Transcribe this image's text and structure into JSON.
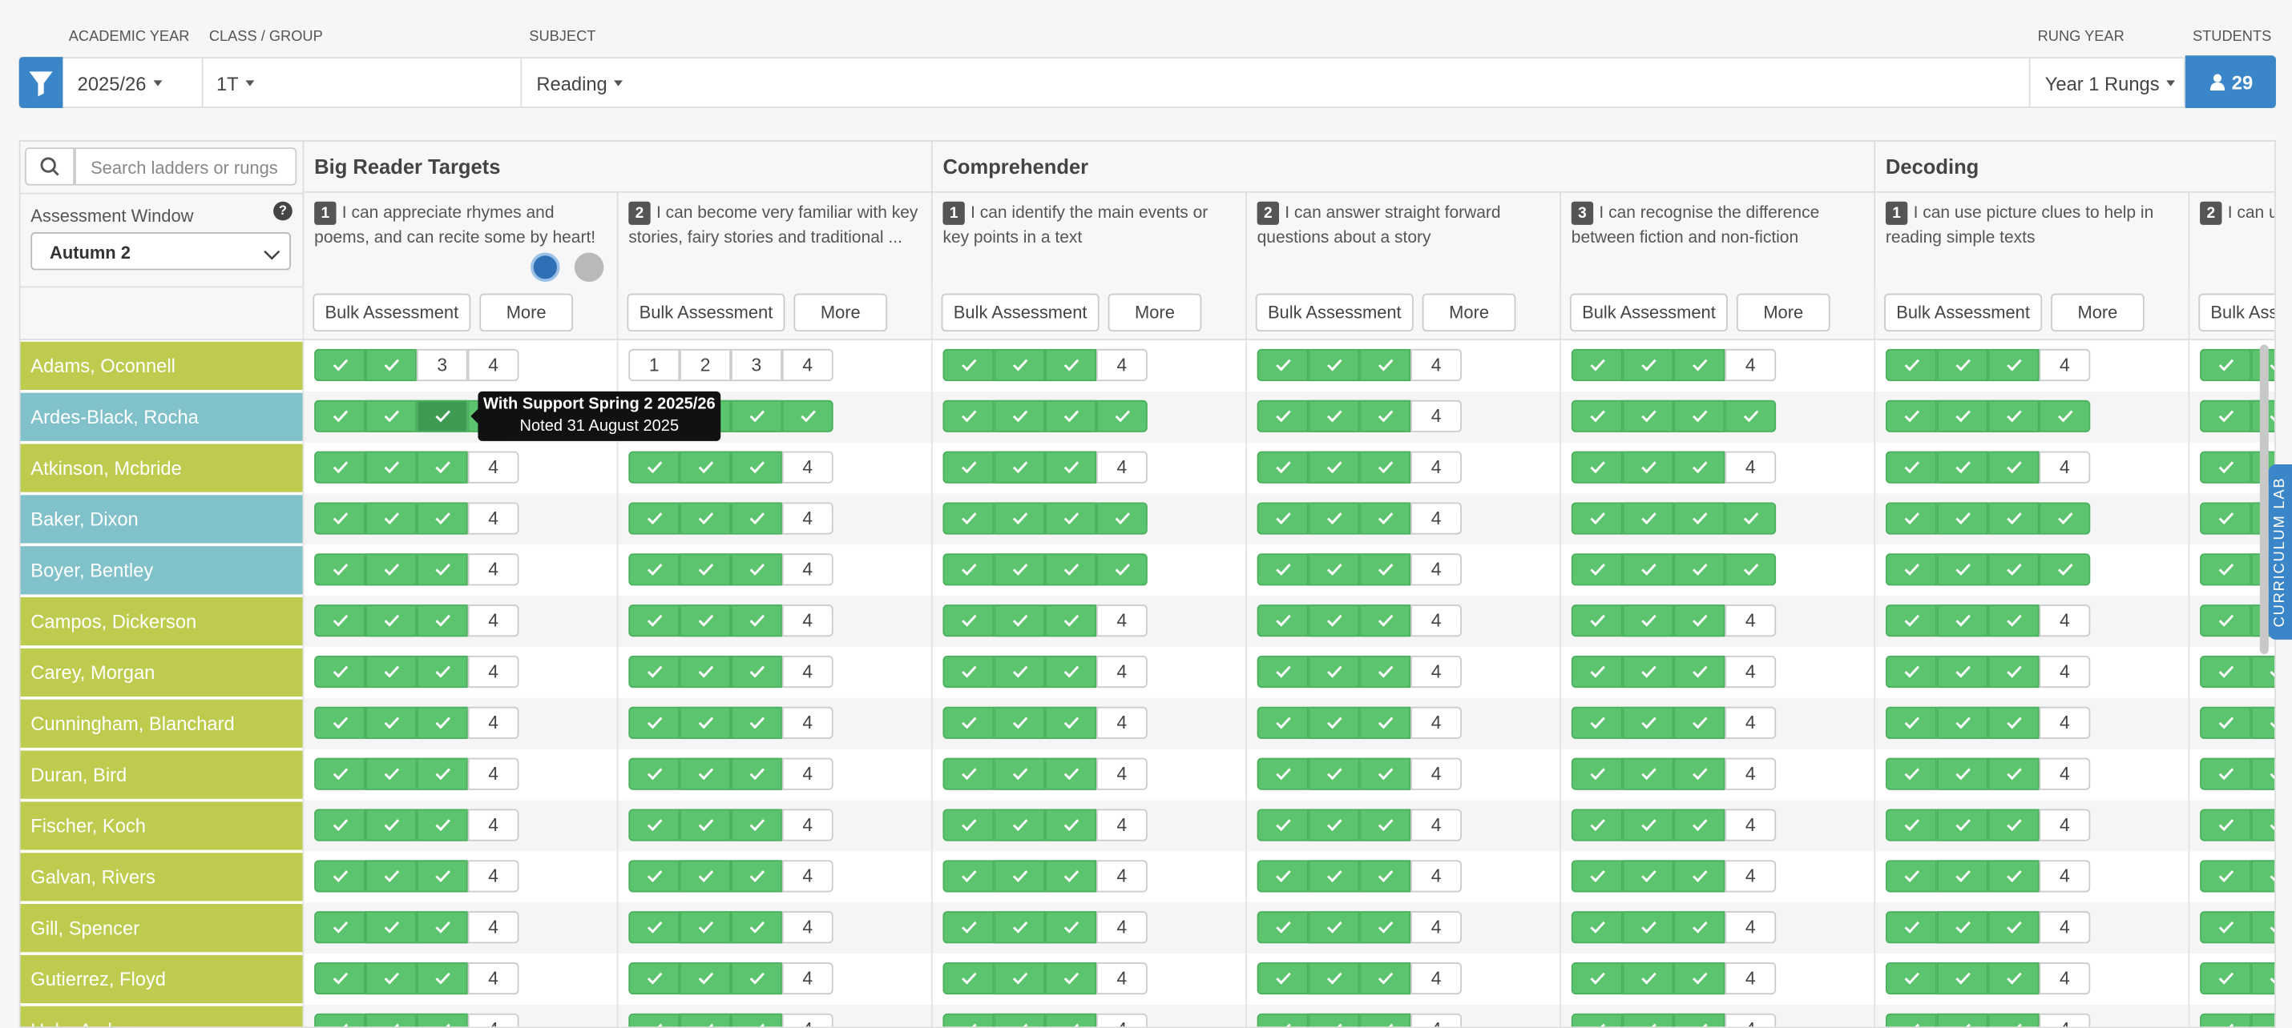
{
  "filters": [
    {
      "label": "ACADEMIC YEAR",
      "value": "2025/26"
    },
    {
      "label": "CLASS / GROUP",
      "value": "1T"
    },
    {
      "label": "SUBJECT",
      "value": "Reading"
    },
    {
      "label": "RUNG YEAR",
      "value": "Year 1 Rungs"
    }
  ],
  "students_button": {
    "label": "STUDENTS",
    "value": "29"
  },
  "search_placeholder": "Search ladders or rungs",
  "assessment_window": {
    "label": "Assessment Window",
    "value": "Autumn 2",
    "help": "?"
  },
  "bulk_button": "Bulk Assessment",
  "more_button": "More",
  "steps": [
    1,
    2,
    3,
    4
  ],
  "groups": [
    {
      "name": "Big Reader Targets",
      "rungs": [
        {
          "number": 1,
          "text": "I can appreciate rhymes and poems, and can recite some by heart!"
        },
        {
          "number": 2,
          "text": "I can become very familiar with key stories, fairy stories and traditional ..."
        }
      ]
    },
    {
      "name": "Comprehender",
      "rungs": [
        {
          "number": 1,
          "text": "I can identify the main events or key points in a text"
        },
        {
          "number": 2,
          "text": "I can answer straight forward questions about a story"
        },
        {
          "number": 3,
          "text": "I can recognise the difference between fiction and non-fiction"
        }
      ]
    },
    {
      "name": "Decoding",
      "rungs": [
        {
          "number": 1,
          "text": "I can use picture clues to help in reading simple texts"
        },
        {
          "number": 2,
          "text": "I can u sounds tog includin..."
        }
      ]
    }
  ],
  "students": [
    {
      "name": "Adams, Oconnell",
      "color": "#bfcb4e",
      "achieved": [
        2,
        0,
        3,
        3,
        3,
        3,
        3
      ]
    },
    {
      "name": "Ardes-Black, Rocha",
      "color": "#80c1ca",
      "achieved": [
        4,
        4,
        4,
        3,
        4,
        4,
        4
      ]
    },
    {
      "name": "Atkinson, Mcbride",
      "color": "#bfcb4e",
      "achieved": [
        3,
        3,
        3,
        3,
        3,
        3,
        3
      ]
    },
    {
      "name": "Baker, Dixon",
      "color": "#80c1ca",
      "achieved": [
        3,
        3,
        4,
        3,
        4,
        4,
        4
      ]
    },
    {
      "name": "Boyer, Bentley",
      "color": "#80c1ca",
      "achieved": [
        3,
        3,
        4,
        3,
        4,
        4,
        4
      ]
    },
    {
      "name": "Campos, Dickerson",
      "color": "#bfcb4e",
      "achieved": [
        3,
        3,
        3,
        3,
        3,
        3,
        3
      ]
    },
    {
      "name": "Carey, Morgan",
      "color": "#bfcb4e",
      "achieved": [
        3,
        3,
        3,
        3,
        3,
        3,
        3
      ]
    },
    {
      "name": "Cunningham, Blanchard",
      "color": "#bfcb4e",
      "achieved": [
        3,
        3,
        3,
        3,
        3,
        3,
        3
      ]
    },
    {
      "name": "Duran, Bird",
      "color": "#bfcb4e",
      "achieved": [
        3,
        3,
        3,
        3,
        3,
        3,
        3
      ]
    },
    {
      "name": "Fischer, Koch",
      "color": "#bfcb4e",
      "achieved": [
        3,
        3,
        3,
        3,
        3,
        3,
        3
      ]
    },
    {
      "name": "Galvan, Rivers",
      "color": "#bfcb4e",
      "achieved": [
        3,
        3,
        3,
        3,
        3,
        3,
        3
      ]
    },
    {
      "name": "Gill, Spencer",
      "color": "#bfcb4e",
      "achieved": [
        3,
        3,
        3,
        3,
        3,
        3,
        3
      ]
    },
    {
      "name": "Gutierrez, Floyd",
      "color": "#bfcb4e",
      "achieved": [
        3,
        3,
        3,
        3,
        3,
        3,
        3
      ]
    },
    {
      "name": "Hale, Archer",
      "color": "#bfcb4e",
      "achieved": [
        3,
        3,
        3,
        3,
        3,
        3,
        3
      ]
    }
  ],
  "tooltip": {
    "title": "With Support Spring 2 2025/26",
    "note": "Noted 31 August 2025"
  },
  "side_tab": "CURRICULUM LAB"
}
